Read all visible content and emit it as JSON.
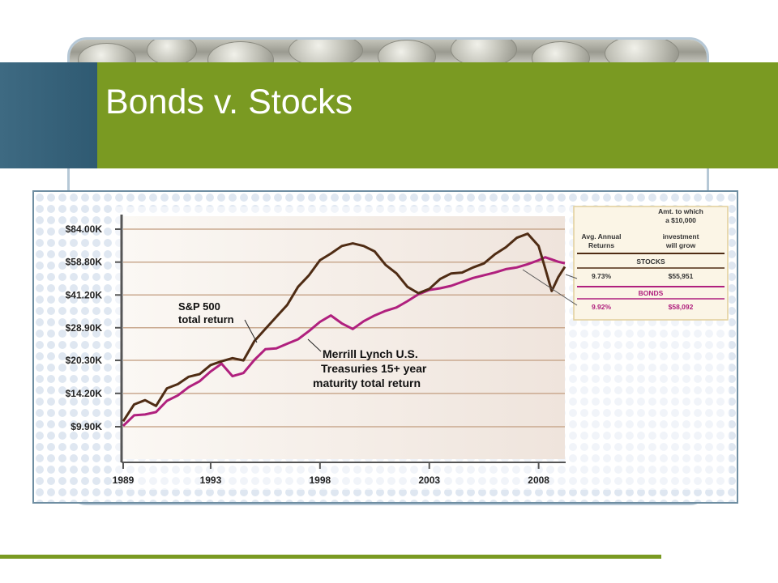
{
  "slide": {
    "title": "Bonds v. Stocks"
  },
  "colors": {
    "accent_green": "#7a9a22",
    "accent_blue": "#3e6a82",
    "stocks_line": "#4f2c14",
    "bonds_line": "#b0207e"
  },
  "chart_data": {
    "type": "line",
    "title": "",
    "xlabel": "",
    "ylabel": "",
    "scale": "log",
    "grid": true,
    "x_ticks": [
      "1989",
      "1993",
      "1998",
      "2003",
      "2008"
    ],
    "y_ticks": [
      "$84.00K",
      "$58.80K",
      "$41.20K",
      "$28.90K",
      "$20.30K",
      "$14.20K",
      "$9.90K"
    ],
    "y_tick_values": [
      84000,
      58800,
      41200,
      28900,
      20300,
      14200,
      9900
    ],
    "series": [
      {
        "name": "S&P 500 total return",
        "x": [
          1989,
          1989.5,
          1990,
          1990.5,
          1991,
          1991.5,
          1992,
          1992.5,
          1993,
          1993.5,
          1994,
          1994.5,
          1995,
          1995.5,
          1996,
          1996.5,
          1997,
          1997.5,
          1998,
          1998.5,
          1999,
          1999.5,
          2000,
          2000.5,
          2001,
          2001.5,
          2002,
          2002.5,
          2003,
          2003.5,
          2004,
          2004.5,
          2005,
          2005.5,
          2006,
          2006.5,
          2007,
          2007.5,
          2008,
          2008.3,
          2008.6,
          2008.9,
          2009.2
        ],
        "values": [
          10500,
          12600,
          13200,
          12400,
          15000,
          15700,
          17000,
          17500,
          19300,
          20100,
          20800,
          20300,
          25000,
          28500,
          32500,
          37000,
          45000,
          51000,
          60000,
          64500,
          70000,
          72000,
          70000,
          66000,
          57000,
          52000,
          45000,
          42000,
          44000,
          49000,
          52000,
          52500,
          55500,
          58000,
          64000,
          69000,
          76500,
          80000,
          70000,
          55000,
          43000,
          50000,
          55951
        ]
      },
      {
        "name": "Merrill Lynch U.S. Treasuries 15+ year maturity total return",
        "x": [
          1989,
          1989.5,
          1990,
          1990.5,
          1991,
          1991.5,
          1992,
          1992.5,
          1993,
          1993.5,
          1994,
          1994.5,
          1995,
          1995.5,
          1996,
          1996.5,
          1997,
          1997.5,
          1998,
          1998.5,
          1999,
          1999.5,
          2000,
          2000.5,
          2001,
          2001.5,
          2002,
          2002.5,
          2003,
          2003.5,
          2004,
          2004.5,
          2005,
          2005.5,
          2006,
          2006.5,
          2007,
          2007.5,
          2008,
          2008.3,
          2008.6,
          2008.9,
          2009.2
        ],
        "values": [
          10000,
          11200,
          11300,
          11600,
          13100,
          13900,
          15200,
          16200,
          18000,
          19600,
          17100,
          17700,
          20400,
          22900,
          23100,
          24300,
          25500,
          27900,
          30800,
          33000,
          30300,
          28500,
          31000,
          33000,
          34700,
          36000,
          38500,
          41500,
          43500,
          44300,
          45500,
          47500,
          49500,
          51000,
          52500,
          54500,
          55500,
          57500,
          60000,
          62000,
          60500,
          59000,
          58092
        ]
      }
    ],
    "annotations": {
      "stocks_label_line1": "S&P 500",
      "stocks_label_line2": "total return",
      "bonds_label_line1": "Merrill Lynch U.S.",
      "bonds_label_line2": "Treasuries 15+ year",
      "bonds_label_line3": "maturity total return"
    },
    "table": {
      "col1_header_line1": "Avg. Annual",
      "col1_header_line2": "Returns",
      "col2_header_line1": "Amt. to which",
      "col2_header_line2": "a $10,000",
      "col2_header_line3": "investment",
      "col2_header_line4": "will grow",
      "stocks_heading": "STOCKS",
      "stocks_return": "9.73%",
      "stocks_amount": "$55,951",
      "bonds_heading": "BONDS",
      "bonds_return": "9.92%",
      "bonds_amount": "$58,092"
    }
  }
}
